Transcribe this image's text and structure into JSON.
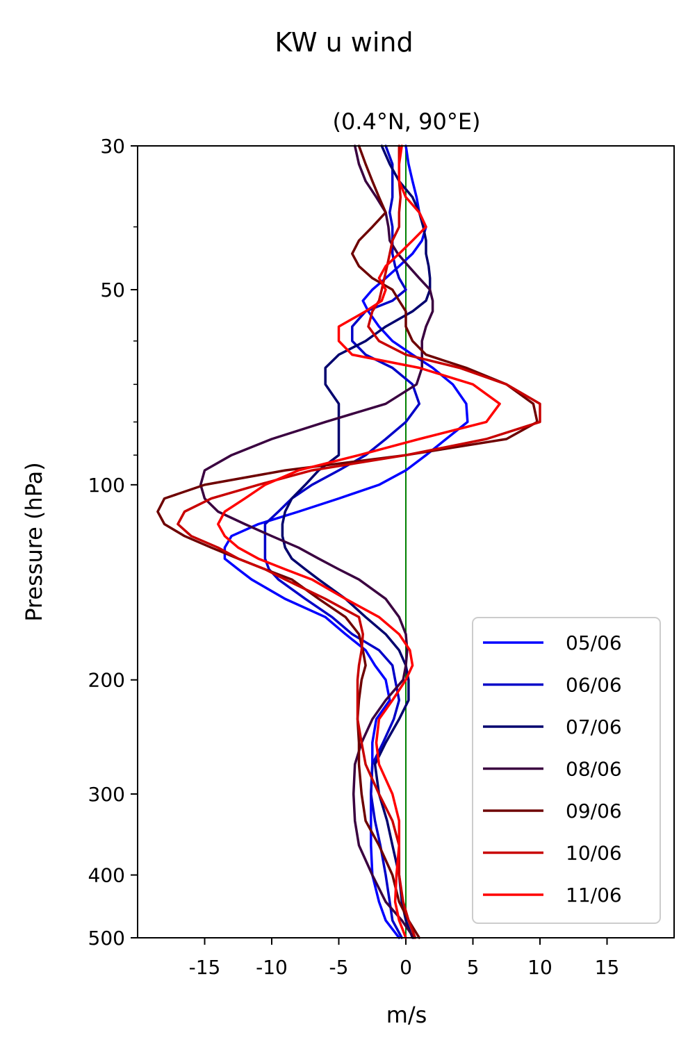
{
  "chart_data": {
    "type": "line",
    "suptitle": "KW u wind",
    "title": "(0.4°N, 90°E)",
    "xlabel": "m/s",
    "ylabel": "Pressure (hPa)",
    "xlim": [
      -20,
      20
    ],
    "ylim": [
      500,
      30
    ],
    "yscale": "log",
    "xticks": [
      -15,
      -10,
      -5,
      0,
      5,
      10,
      15
    ],
    "xtick_labels": [
      "-15",
      "-10",
      "-5",
      "0",
      "5",
      "10",
      "15"
    ],
    "yticks": [
      30,
      50,
      100,
      200,
      300,
      400,
      500
    ],
    "ytick_labels": [
      "30",
      "50",
      "100",
      "200",
      "300",
      "400",
      "500"
    ],
    "yminor_ticks": [
      40,
      60,
      70,
      80,
      90
    ],
    "vline": {
      "x": 0,
      "color": "#008000"
    },
    "grid": false,
    "legend_position": "lower right",
    "pressure_levels": [
      30,
      32,
      34,
      36,
      38,
      40,
      42,
      44,
      46,
      48,
      50,
      52,
      54,
      57,
      60,
      63,
      66,
      70,
      75,
      80,
      85,
      90,
      95,
      100,
      105,
      110,
      115,
      120,
      125,
      130,
      135,
      140,
      150,
      160,
      170,
      180,
      190,
      200,
      215,
      230,
      250,
      270,
      300,
      330,
      360,
      400,
      440,
      470,
      500
    ],
    "series": [
      {
        "name": "05/06",
        "color": "#0000ff",
        "values": [
          0.0,
          0.2,
          0.5,
          0.8,
          1.0,
          1.5,
          1.2,
          0.5,
          -0.5,
          -1.5,
          -2.5,
          -3.2,
          -2.8,
          -2.0,
          -1.0,
          0.5,
          2.0,
          3.5,
          4.5,
          4.6,
          3.0,
          1.5,
          0.0,
          -2.0,
          -5.0,
          -8.0,
          -11.0,
          -13.0,
          -13.5,
          -13.5,
          -12.5,
          -11.5,
          -9.0,
          -6.0,
          -4.5,
          -3.0,
          -2.3,
          -1.5,
          -1.2,
          -2.2,
          -2.5,
          -2.5,
          -2.6,
          -2.6,
          -2.6,
          -2.5,
          -2.0,
          -1.5,
          -0.5
        ]
      },
      {
        "name": "06/06",
        "color": "#0000c8",
        "values": [
          -1.5,
          -1.0,
          -1.0,
          -1.0,
          -1.2,
          -1.0,
          -1.0,
          -1.0,
          -0.8,
          -0.5,
          0.0,
          -1.0,
          -3.0,
          -4.0,
          -4.0,
          -3.0,
          -1.0,
          0.5,
          1.0,
          0.0,
          -1.5,
          -3.0,
          -5.0,
          -7.0,
          -8.5,
          -9.5,
          -10.5,
          -10.5,
          -10.5,
          -10.5,
          -10.2,
          -9.5,
          -7.5,
          -5.5,
          -4.0,
          -2.0,
          -1.0,
          -0.8,
          -0.5,
          -0.9,
          -1.7,
          -2.5,
          -2.6,
          -2.3,
          -1.9,
          -1.5,
          -1.2,
          -1.0,
          -0.3
        ]
      },
      {
        "name": "07/06",
        "color": "#00006e",
        "values": [
          -1.8,
          -1.2,
          -0.5,
          0.5,
          1.0,
          1.3,
          1.5,
          1.5,
          1.7,
          1.8,
          1.8,
          1.5,
          0.5,
          -1.5,
          -3.0,
          -5.0,
          -6.0,
          -6.0,
          -5.0,
          -5.0,
          -5.0,
          -5.0,
          -6.5,
          -7.5,
          -8.5,
          -9.0,
          -9.2,
          -9.2,
          -9.0,
          -8.5,
          -7.5,
          -6.5,
          -4.5,
          -3.0,
          -1.5,
          -0.5,
          0.0,
          0.2,
          0.2,
          -0.5,
          -1.5,
          -2.3,
          -2.0,
          -1.4,
          -1.0,
          -0.5,
          -0.3,
          0.0,
          0.5
        ]
      },
      {
        "name": "08/06",
        "color": "#3a0040",
        "values": [
          -3.8,
          -3.5,
          -3.0,
          -2.2,
          -1.5,
          -1.3,
          -1.2,
          -0.6,
          0.2,
          1.0,
          1.8,
          2.0,
          2.0,
          1.5,
          1.2,
          1.2,
          1.2,
          0.8,
          -1.5,
          -6.0,
          -10.0,
          -13.0,
          -15.0,
          -15.3,
          -15.0,
          -14.0,
          -12.0,
          -10.0,
          -8.0,
          -6.5,
          -5.0,
          -3.5,
          -1.5,
          -0.5,
          0.0,
          0.1,
          0.0,
          -0.2,
          -1.5,
          -2.5,
          -3.3,
          -3.8,
          -3.9,
          -3.8,
          -3.5,
          -2.5,
          -1.5,
          -0.3,
          0.6
        ]
      },
      {
        "name": "09/06",
        "color": "#6e0000",
        "values": [
          -3.5,
          -3.0,
          -2.5,
          -2.0,
          -1.5,
          -2.5,
          -3.5,
          -4.0,
          -3.5,
          -2.5,
          -1.0,
          -0.5,
          0.0,
          0.0,
          0.5,
          1.5,
          4.5,
          7.5,
          9.5,
          9.8,
          7.5,
          0.0,
          -9.0,
          -15.0,
          -18.0,
          -18.5,
          -18.0,
          -16.5,
          -14.5,
          -12.5,
          -10.5,
          -8.5,
          -6.5,
          -4.5,
          -3.5,
          -3.2,
          -3.0,
          -3.3,
          -3.5,
          -3.6,
          -3.5,
          -3.5,
          -3.3,
          -3.0,
          -2.0,
          -1.0,
          -0.5,
          0.2,
          1.0
        ]
      },
      {
        "name": "10/06",
        "color": "#c80000",
        "values": [
          -0.5,
          -0.5,
          -0.5,
          -0.4,
          -0.5,
          -0.5,
          -1.0,
          -1.2,
          -1.4,
          -1.6,
          -1.8,
          -2.0,
          -2.5,
          -2.8,
          -2.0,
          0.0,
          4.0,
          7.5,
          10.0,
          10.0,
          6.0,
          0.0,
          -7.0,
          -11.0,
          -14.5,
          -16.5,
          -17.0,
          -16.0,
          -14.0,
          -12.5,
          -10.5,
          -9.0,
          -6.0,
          -3.5,
          -3.2,
          -3.3,
          -3.5,
          -3.6,
          -3.6,
          -3.6,
          -3.3,
          -3.0,
          -2.0,
          -1.0,
          -0.5,
          -0.5,
          -0.2,
          0.2,
          0.7
        ]
      },
      {
        "name": "11/06",
        "color": "#ff0000",
        "values": [
          -0.3,
          -0.5,
          -0.5,
          0.0,
          1.0,
          1.5,
          0.5,
          -0.5,
          -1.5,
          -2.0,
          -1.5,
          -1.8,
          -3.0,
          -5.0,
          -5.0,
          -4.0,
          1.0,
          5.0,
          7.0,
          6.0,
          1.0,
          -3.5,
          -8.0,
          -10.5,
          -12.0,
          -13.5,
          -14.0,
          -13.5,
          -12.5,
          -11.0,
          -9.0,
          -7.0,
          -4.5,
          -2.0,
          -0.5,
          0.3,
          0.5,
          0.0,
          -1.0,
          -2.0,
          -2.2,
          -2.0,
          -1.0,
          -0.5,
          -0.5,
          -0.7,
          -0.8,
          -0.5,
          0.0
        ]
      }
    ]
  }
}
